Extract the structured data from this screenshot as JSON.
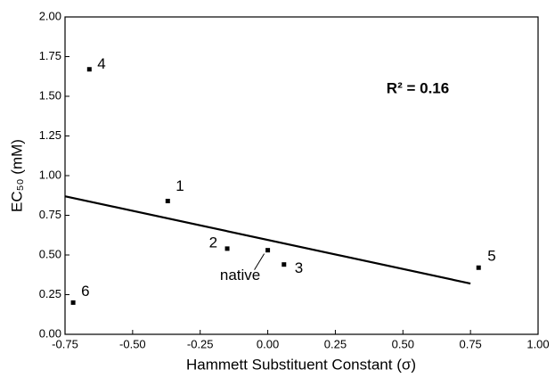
{
  "chart_data": {
    "type": "scatter",
    "xlabel": "Hammett Substituent Constant (σ)",
    "ylabel": "EC₅₀ (mM)",
    "annotation": "R² = 0.16",
    "x": [
      -0.66,
      -0.37,
      -0.15,
      0.0,
      0.06,
      0.78,
      -0.72
    ],
    "values": [
      1.67,
      0.84,
      0.54,
      0.53,
      0.44,
      0.42,
      0.2
    ],
    "point_labels": [
      "4",
      "1",
      "2",
      "native",
      "3",
      "5",
      "6"
    ],
    "color": "#000000",
    "trendline": {
      "x": [
        -0.75,
        0.75
      ],
      "y": [
        0.87,
        0.32
      ]
    },
    "xlim": [
      -0.75,
      1.0
    ],
    "xticks": [
      {
        "value": -0.75,
        "label": "-0.75"
      },
      {
        "value": -0.5,
        "label": "-0.50"
      },
      {
        "value": -0.25,
        "label": "-0.25"
      },
      {
        "value": 0,
        "label": "0.00"
      },
      {
        "value": 0.25,
        "label": "0.25"
      },
      {
        "value": 0.5,
        "label": "0.50"
      },
      {
        "value": 0.75,
        "label": "0.75"
      },
      {
        "value": 1,
        "label": "1.00"
      }
    ],
    "ylim": [
      0,
      2
    ],
    "yticks": [
      {
        "value": 0,
        "label": "0.00"
      },
      {
        "value": 0.25,
        "label": "0.25"
      },
      {
        "value": 0.5,
        "label": "0.50"
      },
      {
        "value": 0.75,
        "label": "0.75"
      },
      {
        "value": 1,
        "label": "1.00"
      },
      {
        "value": 1.25,
        "label": "1.25"
      },
      {
        "value": 1.5,
        "label": "1.50"
      },
      {
        "value": 1.75,
        "label": "1.75"
      },
      {
        "value": 2,
        "label": "2.00"
      }
    ]
  }
}
